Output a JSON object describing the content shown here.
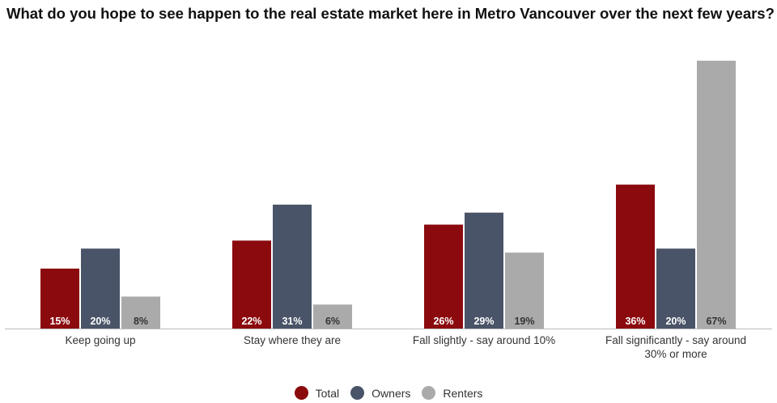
{
  "chart_data": {
    "type": "bar",
    "title": "What do you hope to see happen to the real estate market here in Metro Vancouver over the next few years?",
    "categories": [
      "Keep going up",
      "Stay where they are",
      "Fall slightly - say around 10%",
      "Fall significantly - say around 30% or more"
    ],
    "series": [
      {
        "name": "Total",
        "color": "#8b0a0e",
        "values": [
          15,
          22,
          26,
          36
        ],
        "labels": [
          "15%",
          "22%",
          "26%",
          "36%"
        ]
      },
      {
        "name": "Owners",
        "color": "#4a5468",
        "values": [
          20,
          31,
          29,
          20
        ],
        "labels": [
          "20%",
          "31%",
          "29%",
          "20%"
        ]
      },
      {
        "name": "Renters",
        "color": "#aaaaaa",
        "values": [
          8,
          6,
          19,
          67
        ],
        "labels": [
          "8%",
          "6%",
          "19%",
          "67%"
        ]
      }
    ],
    "ylim": [
      0,
      67
    ],
    "grid": false,
    "legend_position": "bottom"
  }
}
